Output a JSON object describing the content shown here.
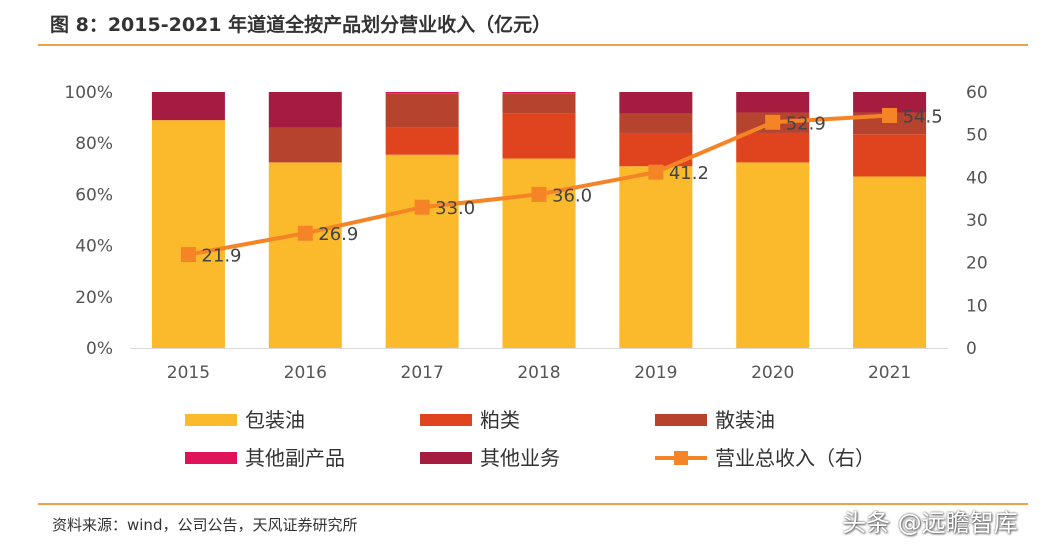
{
  "title": "图 8：2015-2021 年道道全按产品划分营业收入（亿元）",
  "source": "资料来源：wind，公司公告，天风证券研究所",
  "watermark": "头条 @远瞻智库",
  "chart_data": {
    "type": "bar",
    "stacked": true,
    "categories": [
      "2015",
      "2016",
      "2017",
      "2018",
      "2019",
      "2020",
      "2021"
    ],
    "y_left": {
      "ticks": [
        "0%",
        "20%",
        "40%",
        "60%",
        "80%",
        "100%"
      ],
      "ylim": [
        0,
        100
      ]
    },
    "y_right": {
      "ticks": [
        "0",
        "10",
        "20",
        "30",
        "40",
        "50",
        "60"
      ],
      "ylim": [
        0,
        60
      ]
    },
    "series": [
      {
        "name": "包装油",
        "color": "#FBBA2B",
        "values": [
          89,
          72.5,
          75.5,
          74,
          71,
          72.5,
          67
        ]
      },
      {
        "name": "粕类",
        "color": "#E0441E",
        "values": [
          0,
          0,
          10.5,
          17.5,
          13,
          11.5,
          16.5
        ]
      },
      {
        "name": "散装油",
        "color": "#B5432E",
        "values": [
          0,
          13.5,
          13.5,
          8,
          7.5,
          8,
          8.5
        ]
      },
      {
        "name": "其他副产品",
        "color": "#E0125A",
        "values": [
          0,
          0,
          0.5,
          0.5,
          0,
          0,
          0
        ]
      },
      {
        "name": "其他业务",
        "color": "#A51C40",
        "values": [
          11,
          14,
          0,
          0,
          8.5,
          8,
          8
        ]
      }
    ],
    "line": {
      "name": "营业总收入（右）",
      "color": "#F58426",
      "axis": "right",
      "values": [
        21.9,
        26.9,
        33.0,
        36.0,
        41.2,
        52.9,
        54.5
      ],
      "labels": [
        "21.9",
        "26.9",
        "33.0",
        "36.0",
        "41.2",
        "52.9",
        "54.5"
      ]
    },
    "legend": [
      {
        "name": "包装油",
        "kind": "rect",
        "color": "#FBBA2B"
      },
      {
        "name": "粕类",
        "kind": "rect",
        "color": "#E0441E"
      },
      {
        "name": "散装油",
        "kind": "rect",
        "color": "#B5432E"
      },
      {
        "name": "其他副产品",
        "kind": "rect",
        "color": "#E0125A"
      },
      {
        "name": "其他业务",
        "kind": "rect",
        "color": "#A51C40"
      },
      {
        "name": "营业总收入（右）",
        "kind": "line",
        "color": "#F58426"
      }
    ],
    "legend_position": "bottom",
    "grid": false
  }
}
